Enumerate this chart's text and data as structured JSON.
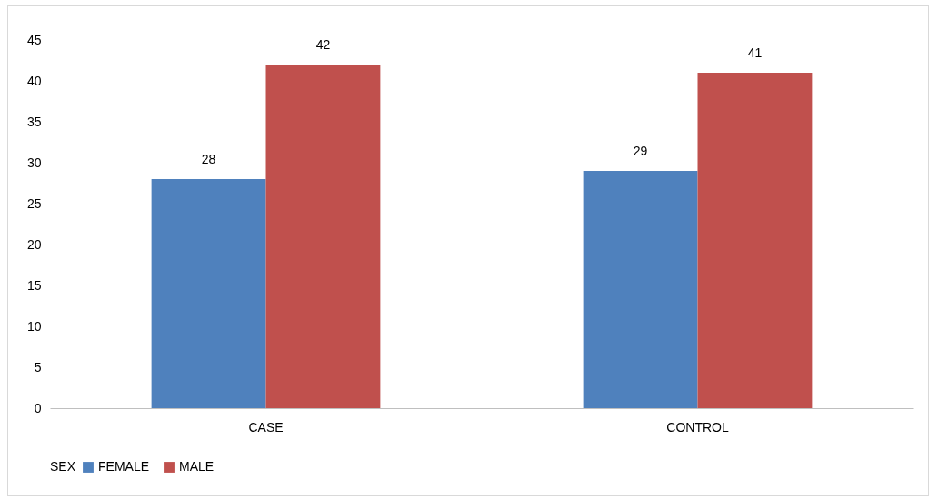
{
  "chart_data": {
    "type": "bar",
    "categories": [
      "CASE",
      "CONTROL"
    ],
    "series": [
      {
        "name": "FEMALE",
        "color": "#4f81bd",
        "values": [
          28,
          29
        ]
      },
      {
        "name": "MALE",
        "color": "#c0504d",
        "values": [
          42,
          41
        ]
      }
    ],
    "legend_title": "SEX",
    "ylim": [
      0,
      45
    ],
    "yticks": [
      0,
      5,
      10,
      15,
      20,
      25,
      30,
      35,
      40,
      45
    ],
    "grid": false,
    "legend": "bottom",
    "data_labels": true
  }
}
